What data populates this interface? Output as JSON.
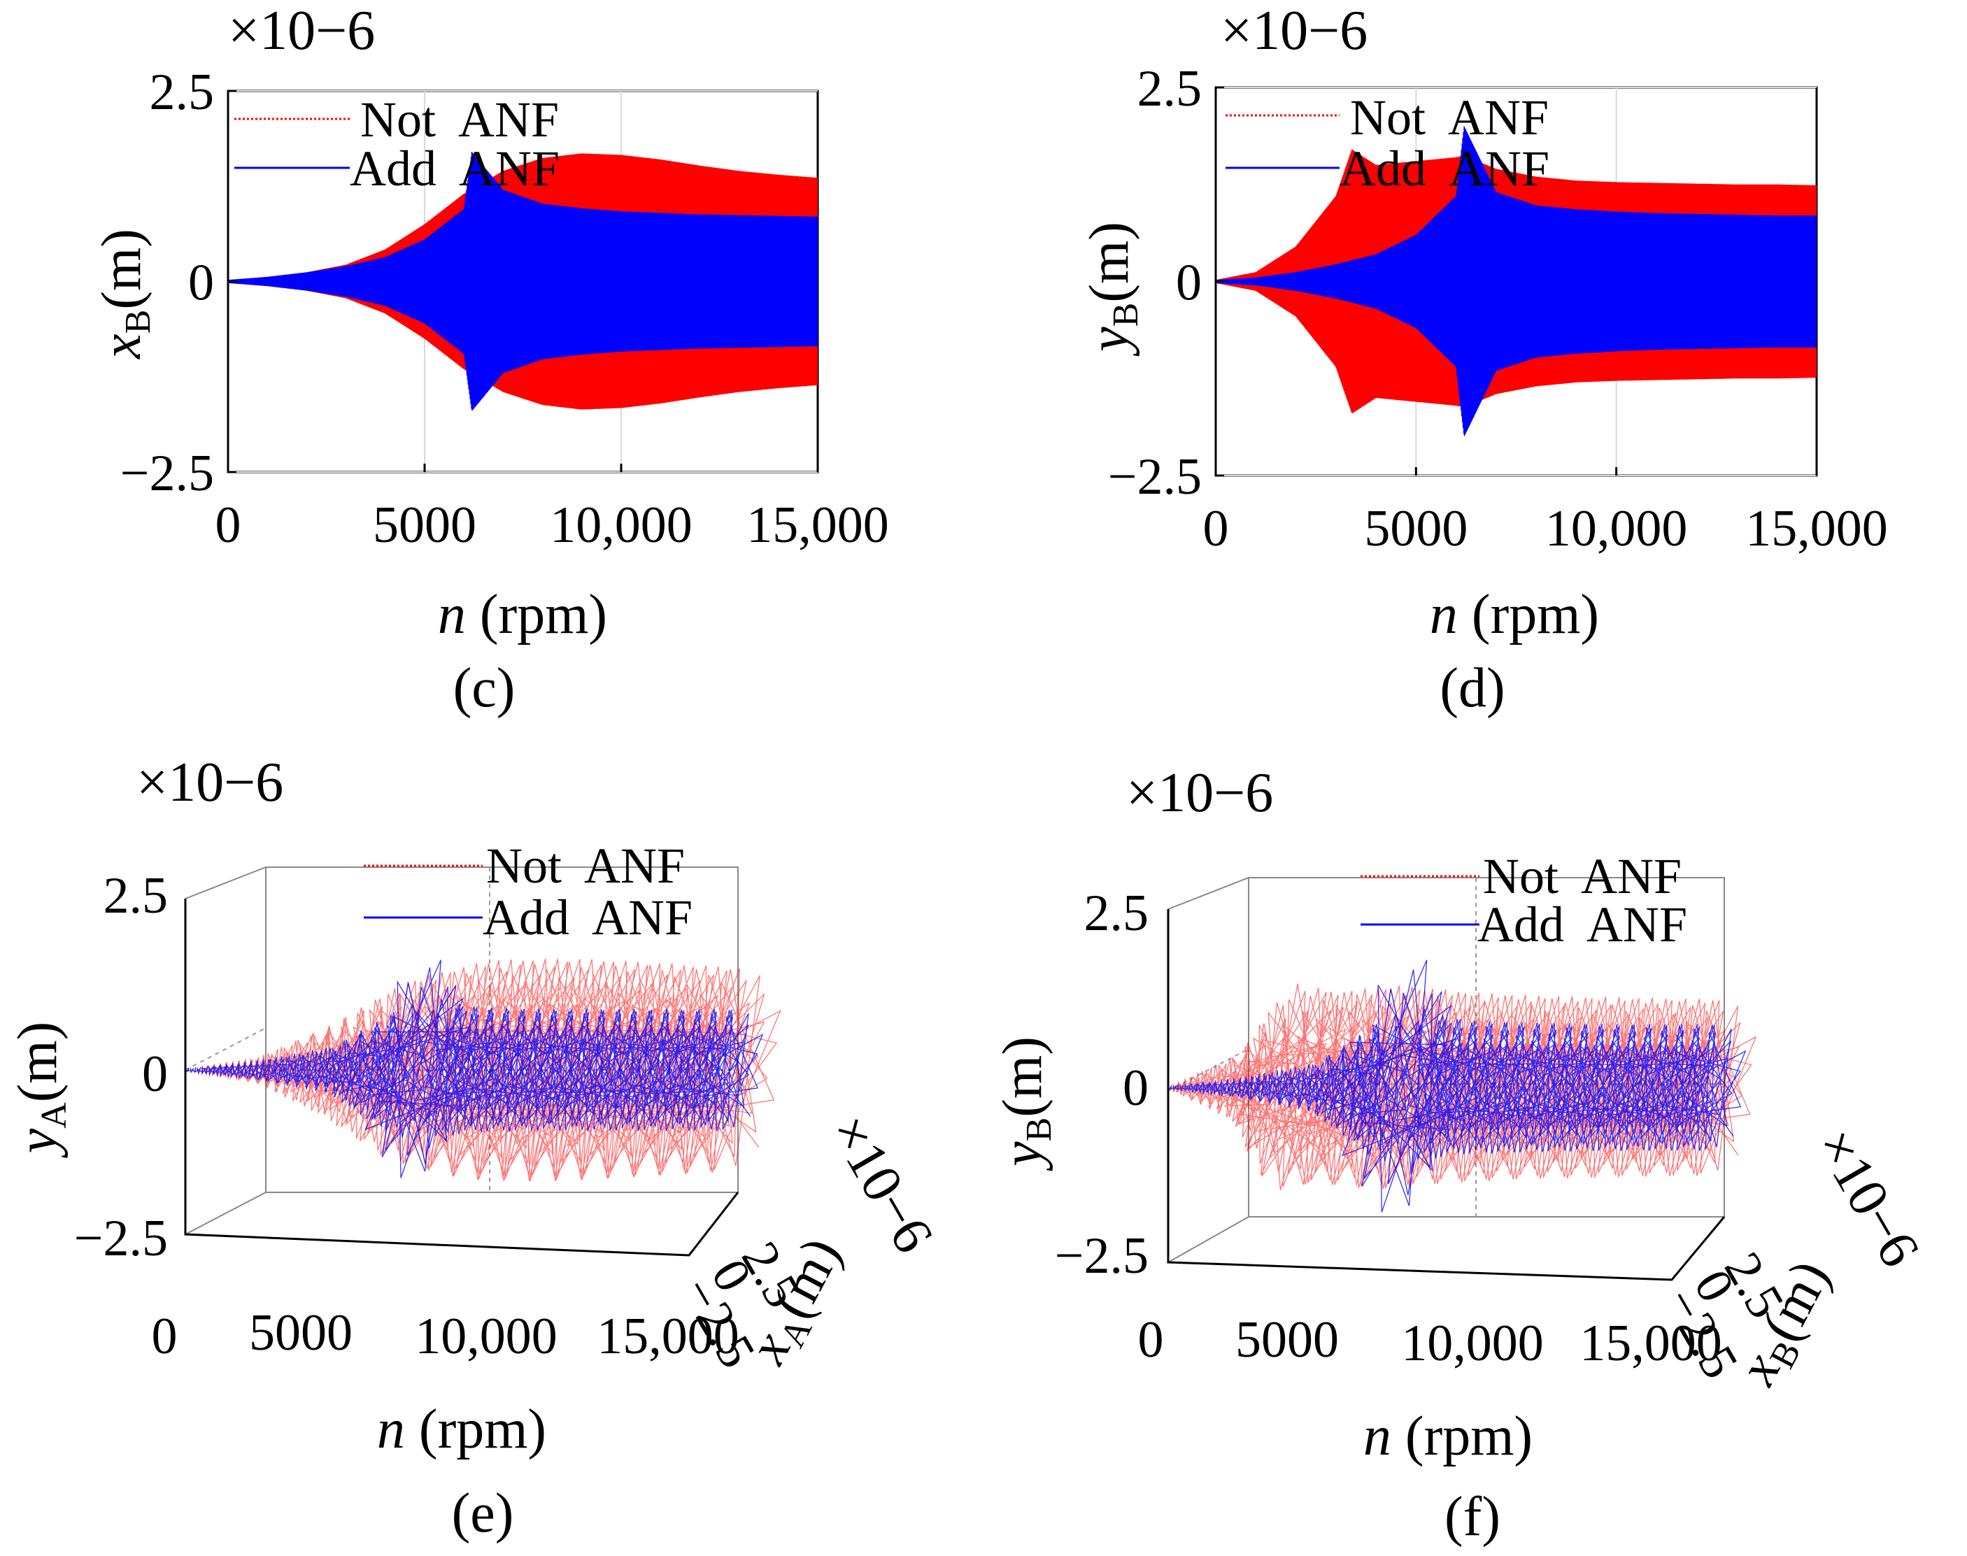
{
  "chart_data": [
    {
      "panel": "(c)",
      "type": "line",
      "xlabel": "n (rpm)",
      "ylabel": "xB(m)",
      "y_multiplier": "×10−6",
      "xlim": [
        0,
        15000
      ],
      "ylim": [
        -2.5,
        2.5
      ],
      "xticks": [
        "0",
        "5000",
        "10,000",
        "15,000"
      ],
      "yticks": [
        "−2.5",
        "0",
        "2.5"
      ],
      "grid": true,
      "legend_position": "top-left",
      "series": [
        {
          "name": "Not  ANF",
          "color": "#ff0000",
          "style": "dotted",
          "envelope_x": [
            0,
            1000,
            2000,
            3000,
            4000,
            5000,
            6000,
            7000,
            8000,
            9000,
            10000,
            11000,
            12000,
            13000,
            14000,
            15000
          ],
          "envelope_amplitude": [
            0.02,
            0.06,
            0.12,
            0.22,
            0.42,
            0.75,
            1.15,
            1.45,
            1.62,
            1.68,
            1.66,
            1.6,
            1.52,
            1.45,
            1.4,
            1.36
          ]
        },
        {
          "name": "Add  ANF",
          "color": "#0000ff",
          "style": "solid",
          "envelope_x": [
            0,
            1000,
            2000,
            3000,
            4000,
            5000,
            6000,
            6200,
            7000,
            8000,
            9000,
            10000,
            11000,
            12000,
            13000,
            14000,
            15000
          ],
          "envelope_amplitude": [
            0.02,
            0.06,
            0.12,
            0.2,
            0.32,
            0.55,
            0.95,
            1.7,
            1.2,
            1.02,
            0.96,
            0.92,
            0.9,
            0.88,
            0.87,
            0.86,
            0.85
          ]
        }
      ]
    },
    {
      "panel": "(d)",
      "type": "line",
      "xlabel": "n (rpm)",
      "ylabel": "yB(m)",
      "y_multiplier": "×10−6",
      "xlim": [
        0,
        15000
      ],
      "ylim": [
        -2.5,
        2.5
      ],
      "xticks": [
        "0",
        "5000",
        "10,000",
        "15,000"
      ],
      "yticks": [
        "−2.5",
        "0",
        "2.5"
      ],
      "grid": true,
      "legend_position": "top-left",
      "series": [
        {
          "name": "Not  ANF",
          "color": "#ff0000",
          "style": "dotted",
          "envelope_x": [
            0,
            1000,
            2000,
            3000,
            3400,
            4000,
            5000,
            6000,
            6200,
            7000,
            8000,
            9000,
            10000,
            11000,
            12000,
            13000,
            14000,
            15000
          ],
          "envelope_amplitude": [
            0.02,
            0.12,
            0.45,
            1.1,
            1.7,
            1.5,
            1.55,
            1.6,
            1.62,
            1.45,
            1.35,
            1.3,
            1.28,
            1.27,
            1.26,
            1.25,
            1.25,
            1.24
          ]
        },
        {
          "name": "Add  ANF",
          "color": "#0000ff",
          "style": "solid",
          "envelope_x": [
            0,
            1000,
            2000,
            3000,
            4000,
            5000,
            6000,
            6200,
            7000,
            8000,
            9000,
            10000,
            11000,
            12000,
            13000,
            14000,
            15000
          ],
          "envelope_amplitude": [
            0.02,
            0.05,
            0.12,
            0.22,
            0.35,
            0.6,
            1.1,
            2.0,
            1.15,
            0.98,
            0.93,
            0.9,
            0.88,
            0.87,
            0.86,
            0.85,
            0.85
          ]
        }
      ]
    },
    {
      "panel": "(e)",
      "type": "line3d",
      "xlabel": "n (rpm)",
      "ylabel": "xA(m)",
      "zlabel": "yA(m)",
      "z_multiplier": "×10−6",
      "y_multiplier": "×10−6",
      "xlim": [
        0,
        15000
      ],
      "ylim": [
        -2.5,
        2.5
      ],
      "zlim": [
        -2.5,
        2.5
      ],
      "xticks": [
        "0",
        "5000",
        "10,000",
        "15,000"
      ],
      "yticks": [
        "−2.5",
        "0",
        "2.5"
      ],
      "zticks": [
        "−2.5",
        "0",
        "2.5"
      ],
      "grid": true,
      "legend_position": "top-center",
      "series": [
        {
          "name": "Not  ANF",
          "color": "#ff0000",
          "style": "dotted",
          "envelope_x": [
            0,
            2000,
            4000,
            6000,
            8000,
            10000,
            12000,
            15000
          ],
          "envelope_amplitude": [
            0.02,
            0.2,
            0.7,
            1.35,
            1.62,
            1.65,
            1.6,
            1.5
          ]
        },
        {
          "name": "Add  ANF",
          "color": "#0000ff",
          "style": "solid",
          "envelope_x": [
            0,
            2000,
            4000,
            6000,
            6200,
            7000,
            8000,
            10000,
            12000,
            15000
          ],
          "envelope_amplitude": [
            0.02,
            0.15,
            0.35,
            1.0,
            1.7,
            1.0,
            0.92,
            0.9,
            0.9,
            0.9
          ]
        }
      ]
    },
    {
      "panel": "(f)",
      "type": "line3d",
      "xlabel": "n (rpm)",
      "ylabel": "xB(m)",
      "zlabel": "yB(m)",
      "z_multiplier": "×10−6",
      "y_multiplier": "×10−6",
      "xlim": [
        0,
        15000
      ],
      "ylim": [
        -2.5,
        2.5
      ],
      "zlim": [
        -2.5,
        2.5
      ],
      "xticks": [
        "0",
        "5000",
        "10,000",
        "15,000"
      ],
      "yticks": [
        "−2.5",
        "0",
        "2.5"
      ],
      "zticks": [
        "−2.5",
        "0",
        "2.5"
      ],
      "grid": true,
      "legend_position": "top-center",
      "series": [
        {
          "name": "Not  ANF",
          "color": "#ff0000",
          "style": "dotted",
          "envelope_x": [
            0,
            2000,
            3400,
            4000,
            6000,
            8000,
            10000,
            12000,
            15000
          ],
          "envelope_amplitude": [
            0.02,
            0.5,
            1.5,
            1.35,
            1.45,
            1.35,
            1.3,
            1.28,
            1.25
          ]
        },
        {
          "name": "Add  ANF",
          "color": "#0000ff",
          "style": "solid",
          "envelope_x": [
            0,
            2000,
            4000,
            6000,
            6200,
            7000,
            8000,
            10000,
            12000,
            15000
          ],
          "envelope_amplitude": [
            0.02,
            0.15,
            0.35,
            1.05,
            1.9,
            1.05,
            0.95,
            0.92,
            0.9,
            0.9
          ]
        }
      ]
    }
  ]
}
